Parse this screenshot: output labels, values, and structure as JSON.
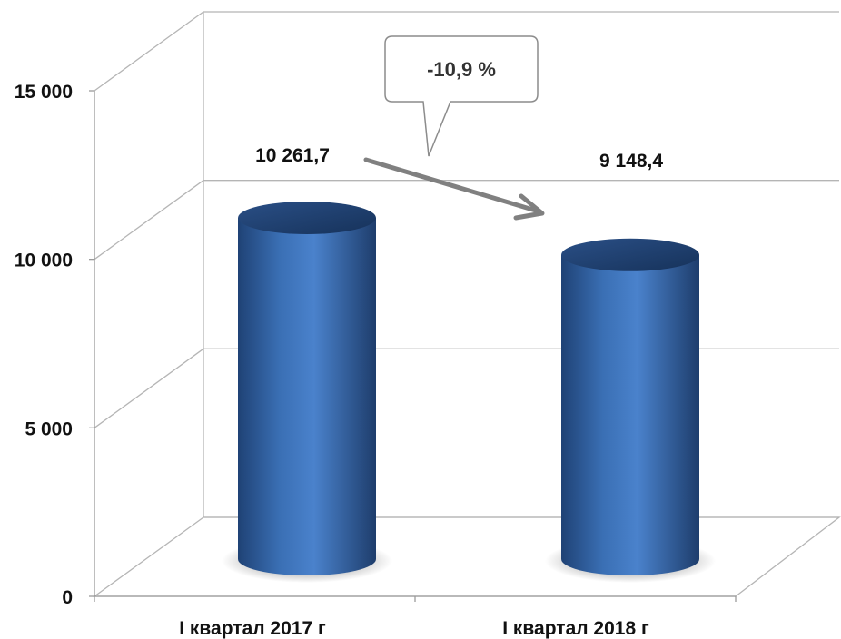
{
  "chart_data": {
    "type": "bar",
    "bar_shape": "cylinder",
    "categories": [
      "I квартал 2017 г",
      "I квартал 2018 г"
    ],
    "series": [
      {
        "values": [
          10261.7,
          9148.4
        ]
      }
    ],
    "value_labels": [
      "10 261,7",
      "9 148,4"
    ],
    "y_ticks": [
      0,
      5000,
      10000,
      15000
    ],
    "y_tick_labels": [
      "0",
      "5 000",
      "10 000",
      "15 000"
    ],
    "ylim": [
      0,
      15000
    ],
    "grid": true,
    "legend": "none",
    "annotation": {
      "text": "-10,9 %",
      "kind": "callout with arrow from first bar to second bar"
    },
    "colors": {
      "bar": "#2e5f9e",
      "bar_top": "#1d3c66",
      "grid": "#b5b5b5",
      "arrow": "#808080",
      "callout_border": "#8c8c8c"
    }
  }
}
